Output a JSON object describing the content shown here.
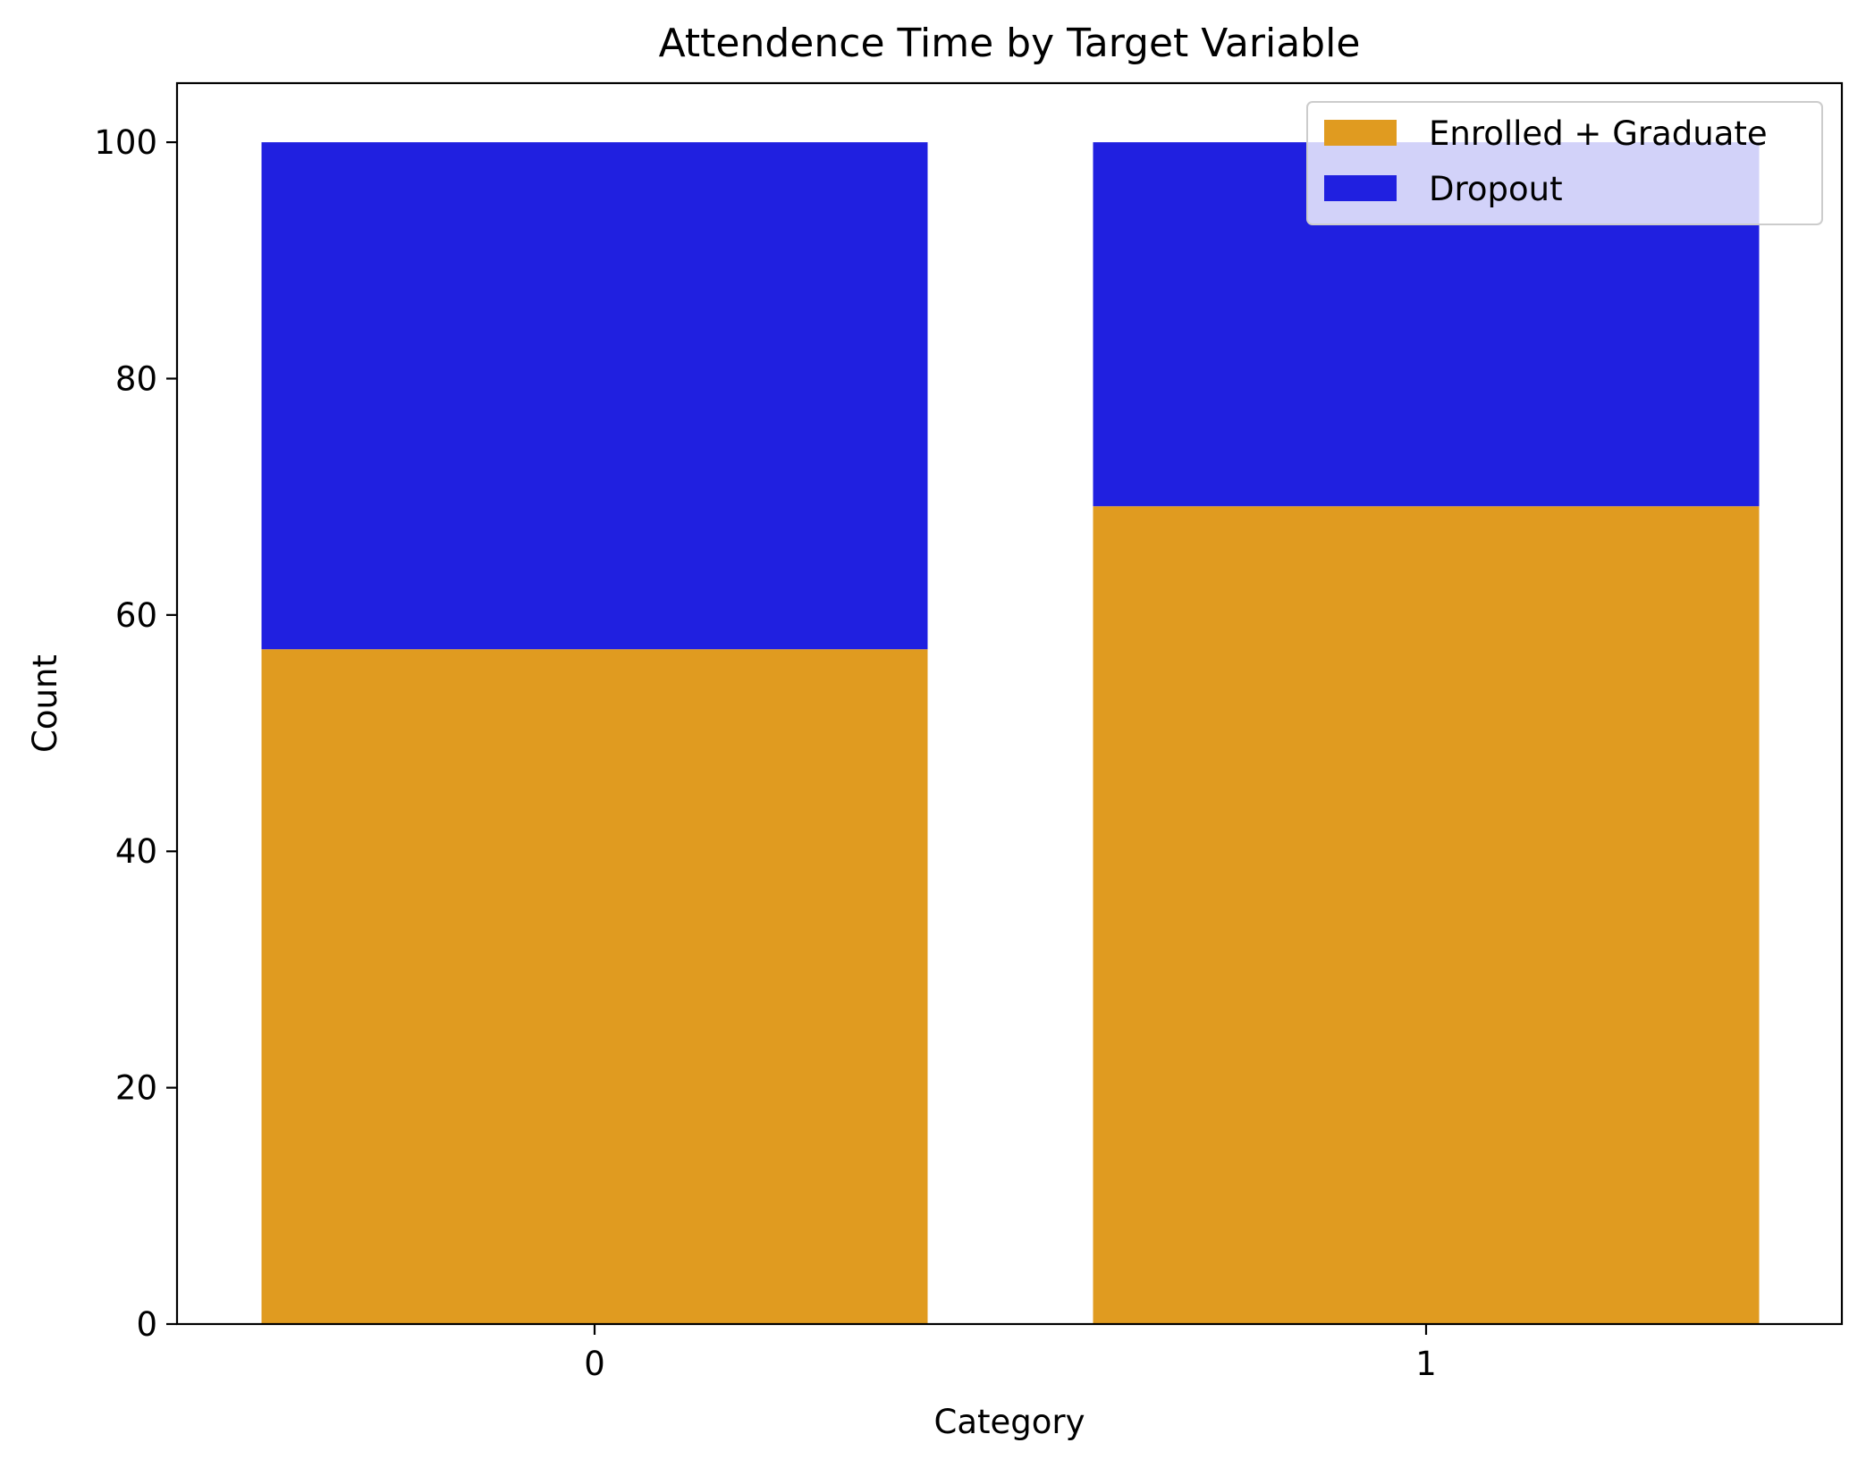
{
  "chart_data": {
    "type": "bar",
    "stacked": true,
    "title": "Attendence Time by Target Variable",
    "xlabel": "Category",
    "ylabel": "Count",
    "categories": [
      "0",
      "1"
    ],
    "ylim": [
      0,
      105
    ],
    "yticks": [
      0,
      20,
      40,
      60,
      80,
      100
    ],
    "series": [
      {
        "name": "Enrolled + Graduate",
        "color": "#e09b20",
        "values": [
          57.1,
          69.2
        ]
      },
      {
        "name": "Dropout",
        "color": "#2020e0",
        "values": [
          42.9,
          30.8
        ]
      }
    ],
    "legend_position": "top-right",
    "grid": false
  }
}
